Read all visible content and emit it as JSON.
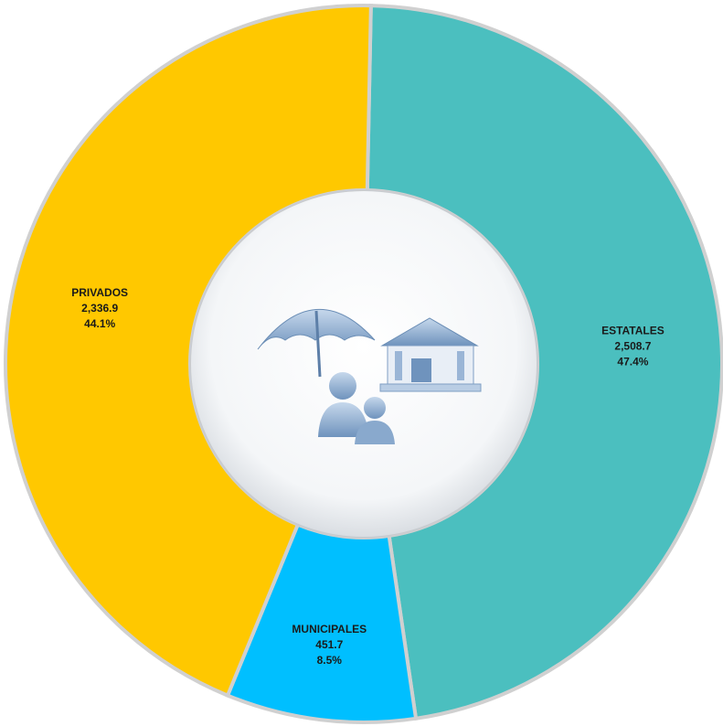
{
  "chart_data": {
    "type": "donut",
    "categories": [
      "ESTATALES",
      "MUNICIPALES",
      "PRIVADOS"
    ],
    "values": [
      2508.7,
      451.7,
      2336.9
    ],
    "value_labels": [
      "2,508.7",
      "451.7",
      "2,336.9"
    ],
    "percents": [
      47.4,
      8.5,
      44.1
    ],
    "percent_labels": [
      "47.4%",
      "8.5%",
      "44.1%"
    ],
    "colors": [
      "#4bbfbf",
      "#00bfff",
      "#ffc800"
    ]
  }
}
